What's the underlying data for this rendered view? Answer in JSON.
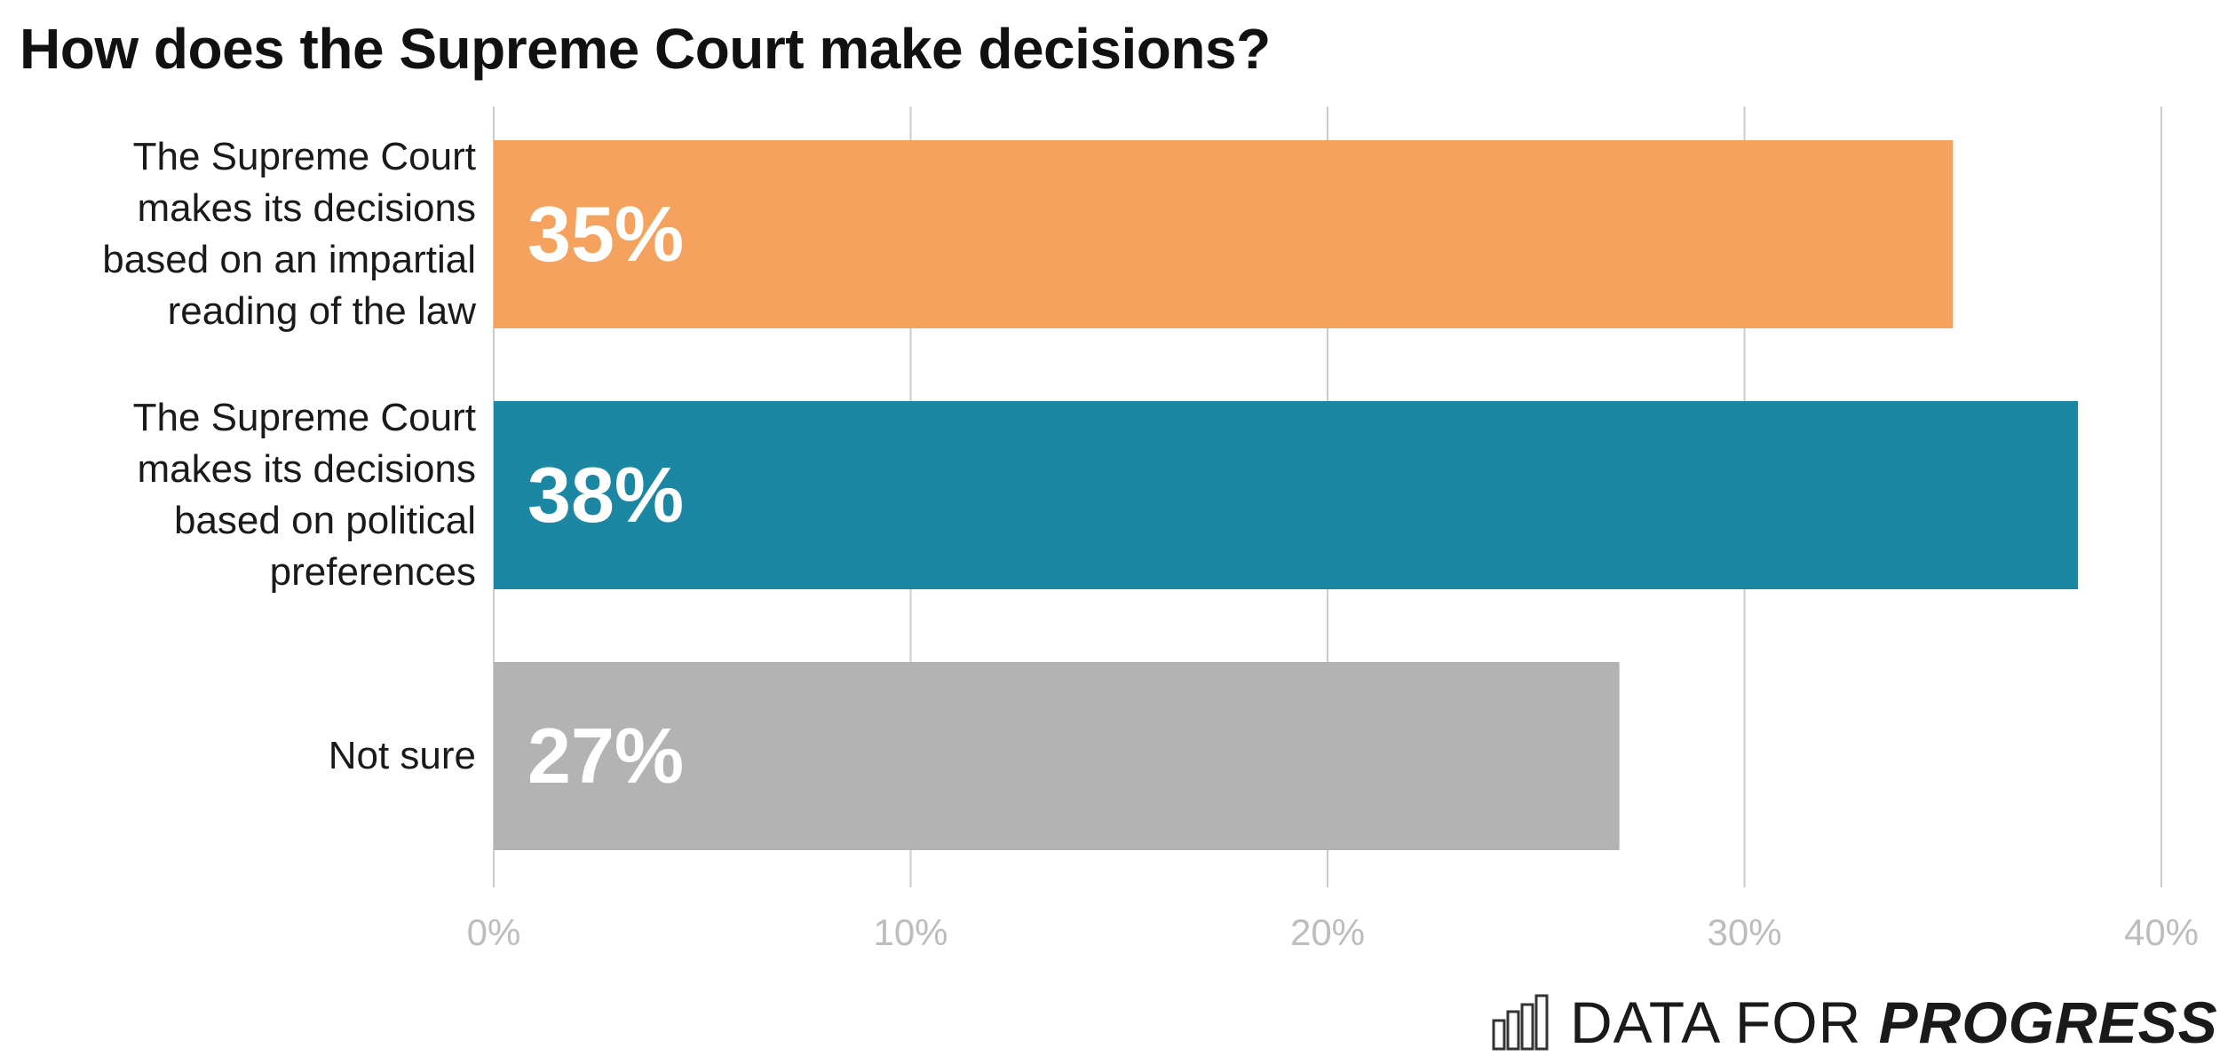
{
  "chart_data": {
    "type": "bar",
    "orientation": "horizontal",
    "title": "How does the Supreme Court make decisions?",
    "categories": [
      "The Supreme Court makes its decisions based on an impartial reading of the law",
      "The Supreme Court makes its decisions based on political preferences",
      "Not sure"
    ],
    "category_lines": [
      [
        "The Supreme Court",
        "makes its decisions",
        "based on an impartial",
        "reading of the law"
      ],
      [
        "The Supreme Court",
        "makes its decisions",
        "based on political",
        "preferences"
      ],
      [
        "Not sure"
      ]
    ],
    "values": [
      35,
      38,
      27
    ],
    "data_labels": [
      "35%",
      "38%",
      "27%"
    ],
    "colors": [
      "#f4a25d",
      "#1b87a3",
      "#b3b3b3"
    ],
    "xlim": [
      0,
      40
    ],
    "xticks": [
      0,
      10,
      20,
      30,
      40
    ],
    "xtick_labels": [
      "0%",
      "10%",
      "20%",
      "30%",
      "40%"
    ],
    "xlabel": "",
    "ylabel": "",
    "grid": true,
    "legend": "none"
  },
  "brand": {
    "prefix": "DATA FOR ",
    "emphasis": "PROGRESS",
    "icon": "bar-chart-icon"
  }
}
